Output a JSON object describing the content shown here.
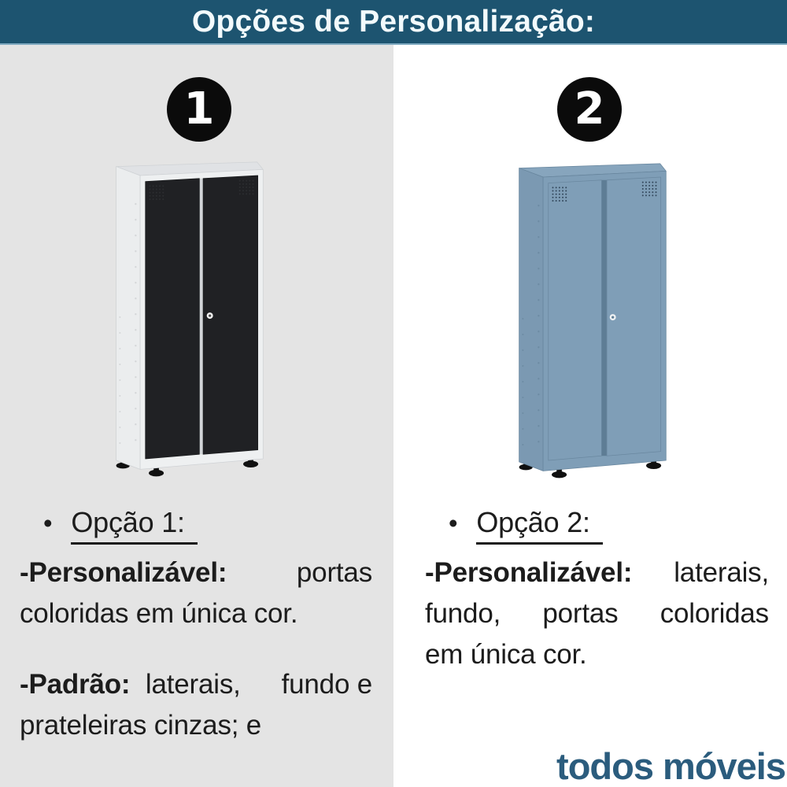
{
  "header": {
    "title": "Opções de Personalização:",
    "bg": "#1d5470",
    "text_color": "#f2fafc"
  },
  "text_color": "#1c1c1c",
  "badge": {
    "bg": "#0b0b0b",
    "text": "#ffffff"
  },
  "options": [
    {
      "number": "1",
      "bullet": "•",
      "label": "Opção 1:",
      "p1_bold": "-Personalizável:",
      "p1_end": "portas",
      "p1_line2": "coloridas em única cor.",
      "p2_bold": "-Padrão:",
      "p2_mid": "laterais,",
      "p2_end": "fundo e",
      "p2_line2": "prateleiras cinzas; e",
      "panel_bg": "#e4e4e4",
      "cabinet": {
        "description": "armário alto com corpo cinza claro e portas pretas",
        "top": "#e0e2e5",
        "side": "#ebedee",
        "frame": "#eef0f1",
        "door": "#202124",
        "door_edge": "#1a1c1e",
        "gap": "#d2d5d8",
        "vent": "#2c2e31",
        "holes": "#d4d6d8",
        "keyhole_ring": "#f2f2f2",
        "keyhole_center": "#4a4a4a",
        "feet": "#101010",
        "edge": "#cfd2d5"
      }
    },
    {
      "number": "2",
      "bullet": "•",
      "label": "Opção 2:",
      "p1_bold": "-Personalizável:",
      "p1_end": "laterais,",
      "p1_line2_w1": "fundo,",
      "p1_line2_w2": "portas",
      "p1_line2_w3": "coloridas",
      "p1_line3": "em única cor.",
      "panel_bg": "#ffffff",
      "cabinet": {
        "description": "armário alto todo azul",
        "top": "#87a5bd",
        "side": "#7b99b2",
        "frame": "#7f9eb7",
        "door": "#7f9eb7",
        "door_edge": "#6a88a0",
        "gap": "#5e7d95",
        "vent": "#33485c",
        "holes": "#6d8ba3",
        "keyhole_ring": "#eef1f3",
        "keyhole_center": "#5e7d95",
        "feet": "#101010",
        "edge": "#68869e"
      }
    }
  ],
  "logo": {
    "text": "todos móveis",
    "color": "#2b5c7d"
  }
}
